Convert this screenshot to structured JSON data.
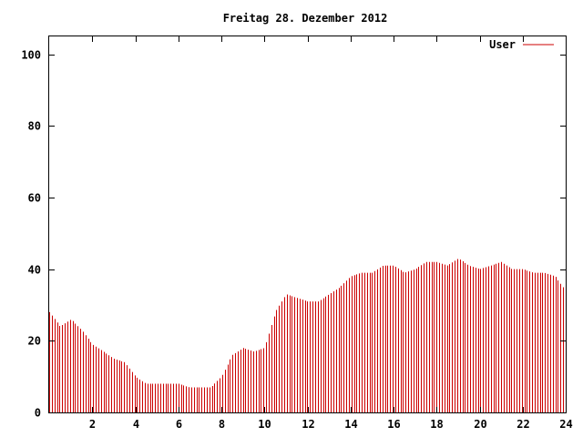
{
  "chart_data": {
    "type": "bar",
    "title": "Freitag 28. Dezember 2012",
    "xlabel": "",
    "ylabel": "",
    "xlim": [
      0,
      24
    ],
    "ylim": [
      0,
      105
    ],
    "grid": false,
    "legend_position": "top-right",
    "x_ticks": [
      "2",
      "4",
      "6",
      "8",
      "10",
      "12",
      "14",
      "16",
      "18",
      "20",
      "22",
      "24"
    ],
    "y_ticks": [
      "0",
      "20",
      "40",
      "60",
      "80",
      "100"
    ],
    "series": [
      {
        "name": "User",
        "color": "#cc0000",
        "x": [
          0,
          0.5,
          1,
          1.5,
          2,
          2.5,
          3,
          3.5,
          4,
          4.5,
          5,
          5.5,
          6,
          6.5,
          7,
          7.5,
          8,
          8.5,
          9,
          9.5,
          10,
          10.5,
          11,
          11.5,
          12,
          12.5,
          13,
          13.5,
          14,
          14.5,
          15,
          15.5,
          16,
          16.5,
          17,
          17.5,
          18,
          18.5,
          19,
          19.5,
          20,
          20.5,
          21,
          21.5,
          22,
          22.5,
          23,
          23.5,
          24
        ],
        "values": [
          28,
          24,
          26,
          23,
          19,
          17,
          15,
          14,
          10,
          8,
          8,
          8,
          8,
          7,
          7,
          7,
          10,
          16,
          18,
          17,
          18,
          28,
          33,
          32,
          31,
          31,
          33,
          35,
          38,
          39,
          39,
          41,
          41,
          39,
          40,
          42,
          42,
          41,
          43,
          41,
          40,
          41,
          42,
          40,
          40,
          39,
          39,
          38,
          34
        ]
      }
    ]
  }
}
